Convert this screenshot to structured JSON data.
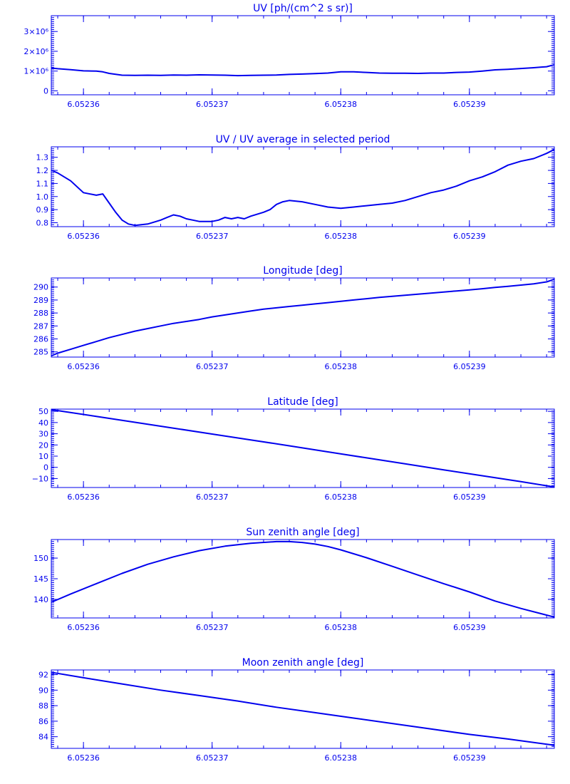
{
  "style": {
    "ink_color": "#0000ee",
    "background_color": "#ffffff"
  },
  "chart_data": [
    {
      "type": "line",
      "title": "UV [ph/(cm^2 s sr)]",
      "xlim": [
        6.0523575,
        6.0523966
      ],
      "ylim": [
        -200000,
        3800000
      ],
      "x_ticks": [
        6.05236,
        6.05237,
        6.05238,
        6.05239
      ],
      "x_tick_labels": [
        "6.05236",
        "6.05237",
        "6.05238",
        "6.05239"
      ],
      "y_ticks": [
        0,
        1000000,
        2000000,
        3000000
      ],
      "y_tick_labels": [
        "0",
        "1×10⁶",
        "2×10⁶",
        "3×10⁶"
      ],
      "x": [
        6.0523575,
        6.052358,
        6.052359,
        6.05236,
        6.052361,
        6.0523615,
        6.052362,
        6.052363,
        6.052364,
        6.052365,
        6.052366,
        6.052367,
        6.052368,
        6.052369,
        6.05237,
        6.052371,
        6.052372,
        6.052373,
        6.052374,
        6.052375,
        6.052376,
        6.052377,
        6.052378,
        6.052379,
        6.05238,
        6.052381,
        6.052382,
        6.052383,
        6.052384,
        6.052385,
        6.052386,
        6.052387,
        6.052388,
        6.052389,
        6.05239,
        6.052391,
        6.052392,
        6.052393,
        6.052394,
        6.052395,
        6.052396,
        6.0523966
      ],
      "y": [
        1150000,
        1120000,
        1070000,
        1010000,
        1000000,
        960000,
        880000,
        790000,
        780000,
        790000,
        780000,
        800000,
        790000,
        810000,
        800000,
        790000,
        770000,
        780000,
        790000,
        800000,
        830000,
        850000,
        870000,
        900000,
        960000,
        960000,
        930000,
        900000,
        890000,
        890000,
        880000,
        900000,
        900000,
        930000,
        950000,
        1000000,
        1060000,
        1090000,
        1130000,
        1170000,
        1220000,
        1320000
      ]
    },
    {
      "type": "line",
      "title": "UV / UV average in selected period",
      "xlim": [
        6.0523575,
        6.0523966
      ],
      "ylim": [
        0.77,
        1.38
      ],
      "x_ticks": [
        6.05236,
        6.05237,
        6.05238,
        6.05239
      ],
      "x_tick_labels": [
        "6.05236",
        "6.05237",
        "6.05238",
        "6.05239"
      ],
      "y_ticks": [
        0.8,
        0.9,
        1.0,
        1.1,
        1.2,
        1.3
      ],
      "y_tick_labels": [
        "0.8",
        "0.9",
        "1.0",
        "1.1",
        "1.2",
        "1.3"
      ],
      "x": [
        6.0523575,
        6.052358,
        6.052359,
        6.05236,
        6.052361,
        6.0523615,
        6.052362,
        6.0523625,
        6.052363,
        6.0523635,
        6.052364,
        6.052365,
        6.052366,
        6.0523665,
        6.052367,
        6.0523675,
        6.052368,
        6.0523685,
        6.052369,
        6.05237,
        6.0523705,
        6.052371,
        6.0523715,
        6.052372,
        6.0523725,
        6.052373,
        6.052374,
        6.0523745,
        6.052375,
        6.0523755,
        6.052376,
        6.052377,
        6.052378,
        6.052379,
        6.05238,
        6.052381,
        6.052382,
        6.052383,
        6.052384,
        6.052385,
        6.052386,
        6.052387,
        6.052388,
        6.052389,
        6.05239,
        6.052391,
        6.052392,
        6.052393,
        6.052394,
        6.052395,
        6.052396,
        6.0523966
      ],
      "y": [
        1.2,
        1.18,
        1.12,
        1.03,
        1.01,
        1.02,
        0.95,
        0.88,
        0.82,
        0.79,
        0.78,
        0.79,
        0.82,
        0.84,
        0.86,
        0.85,
        0.83,
        0.82,
        0.81,
        0.81,
        0.82,
        0.84,
        0.83,
        0.84,
        0.83,
        0.85,
        0.88,
        0.9,
        0.94,
        0.96,
        0.97,
        0.96,
        0.94,
        0.92,
        0.91,
        0.92,
        0.93,
        0.94,
        0.95,
        0.97,
        1.0,
        1.03,
        1.05,
        1.08,
        1.12,
        1.15,
        1.19,
        1.24,
        1.27,
        1.29,
        1.33,
        1.36
      ]
    },
    {
      "type": "line",
      "title": "Longitude [deg]",
      "xlim": [
        6.0523575,
        6.0523966
      ],
      "ylim": [
        284.6,
        290.7
      ],
      "x_ticks": [
        6.05236,
        6.05237,
        6.05238,
        6.05239
      ],
      "x_tick_labels": [
        "6.05236",
        "6.05237",
        "6.05238",
        "6.05239"
      ],
      "y_ticks": [
        285,
        286,
        287,
        288,
        289,
        290
      ],
      "y_tick_labels": [
        "285",
        "286",
        "287",
        "288",
        "289",
        "290"
      ],
      "x": [
        6.0523575,
        6.052358,
        6.052359,
        6.05236,
        6.052361,
        6.052362,
        6.052363,
        6.052364,
        6.052365,
        6.052366,
        6.052367,
        6.052368,
        6.052369,
        6.05237,
        6.052371,
        6.052372,
        6.052373,
        6.052374,
        6.052375,
        6.052376,
        6.052377,
        6.052378,
        6.052379,
        6.05238,
        6.052381,
        6.052382,
        6.052383,
        6.052384,
        6.052385,
        6.052386,
        6.052387,
        6.052388,
        6.052389,
        6.05239,
        6.052391,
        6.052392,
        6.052393,
        6.052394,
        6.052395,
        6.052396,
        6.0523966
      ],
      "y": [
        284.7,
        284.9,
        285.2,
        285.5,
        285.8,
        286.1,
        286.35,
        286.6,
        286.8,
        287.0,
        287.2,
        287.35,
        287.5,
        287.7,
        287.85,
        288.0,
        288.15,
        288.3,
        288.4,
        288.5,
        288.6,
        288.7,
        288.8,
        288.9,
        289.0,
        289.1,
        289.2,
        289.28,
        289.37,
        289.45,
        289.53,
        289.62,
        289.7,
        289.78,
        289.87,
        289.97,
        290.05,
        290.15,
        290.25,
        290.4,
        290.6
      ]
    },
    {
      "type": "line",
      "title": "Latitude [deg]",
      "xlim": [
        6.0523575,
        6.0523966
      ],
      "ylim": [
        -18,
        52
      ],
      "x_ticks": [
        6.05236,
        6.05237,
        6.05238,
        6.05239
      ],
      "x_tick_labels": [
        "6.05236",
        "6.05237",
        "6.05238",
        "6.05239"
      ],
      "y_ticks": [
        -10,
        0,
        10,
        20,
        30,
        40,
        50
      ],
      "y_tick_labels": [
        "−10",
        "0",
        "10",
        "20",
        "30",
        "40",
        "50"
      ],
      "x": [
        6.0523575,
        6.052361,
        6.052364,
        6.052367,
        6.05237,
        6.052373,
        6.052376,
        6.052379,
        6.052382,
        6.052385,
        6.052388,
        6.052391,
        6.052394,
        6.0523966
      ],
      "y": [
        51.5,
        45.5,
        40.2,
        35.0,
        29.7,
        24.5,
        19.2,
        13.8,
        8.5,
        3.2,
        -2.2,
        -7.5,
        -12.8,
        -17.5
      ]
    },
    {
      "type": "line",
      "title": "Sun zenith angle [deg]",
      "xlim": [
        6.0523575,
        6.0523966
      ],
      "ylim": [
        135.5,
        154.5
      ],
      "x_ticks": [
        6.05236,
        6.05237,
        6.05238,
        6.05239
      ],
      "x_tick_labels": [
        "6.05236",
        "6.05237",
        "6.05238",
        "6.05239"
      ],
      "y_ticks": [
        140,
        145,
        150
      ],
      "y_tick_labels": [
        "140",
        "145",
        "150"
      ],
      "x": [
        6.0523575,
        6.052359,
        6.052361,
        6.052363,
        6.052365,
        6.052367,
        6.052369,
        6.052371,
        6.052373,
        6.052375,
        6.052376,
        6.052377,
        6.052378,
        6.052379,
        6.05238,
        6.052382,
        6.052384,
        6.052386,
        6.052388,
        6.05239,
        6.052392,
        6.052394,
        6.0523966
      ],
      "y": [
        139.3,
        141.3,
        143.8,
        146.3,
        148.5,
        150.3,
        151.8,
        152.9,
        153.6,
        154.0,
        154.0,
        153.8,
        153.4,
        152.8,
        152.0,
        150.1,
        148.0,
        145.9,
        143.8,
        141.8,
        139.6,
        137.8,
        135.7
      ]
    },
    {
      "type": "line",
      "title": "Moon zenith angle [deg]",
      "xlim": [
        6.0523575,
        6.0523966
      ],
      "ylim": [
        82.5,
        92.6
      ],
      "x_ticks": [
        6.05236,
        6.05237,
        6.05238,
        6.05239
      ],
      "x_tick_labels": [
        "6.05236",
        "6.05237",
        "6.05238",
        "6.05239"
      ],
      "y_ticks": [
        84,
        86,
        88,
        90,
        92
      ],
      "y_tick_labels": [
        "84",
        "86",
        "88",
        "90",
        "92"
      ],
      "x": [
        6.0523575,
        6.05236,
        6.052363,
        6.052366,
        6.052369,
        6.052372,
        6.052375,
        6.052378,
        6.052381,
        6.052384,
        6.052387,
        6.05239,
        6.052393,
        6.0523966
      ],
      "y": [
        92.3,
        91.6,
        90.8,
        90.0,
        89.3,
        88.6,
        87.8,
        87.1,
        86.4,
        85.7,
        85.0,
        84.3,
        83.7,
        82.9
      ]
    }
  ]
}
